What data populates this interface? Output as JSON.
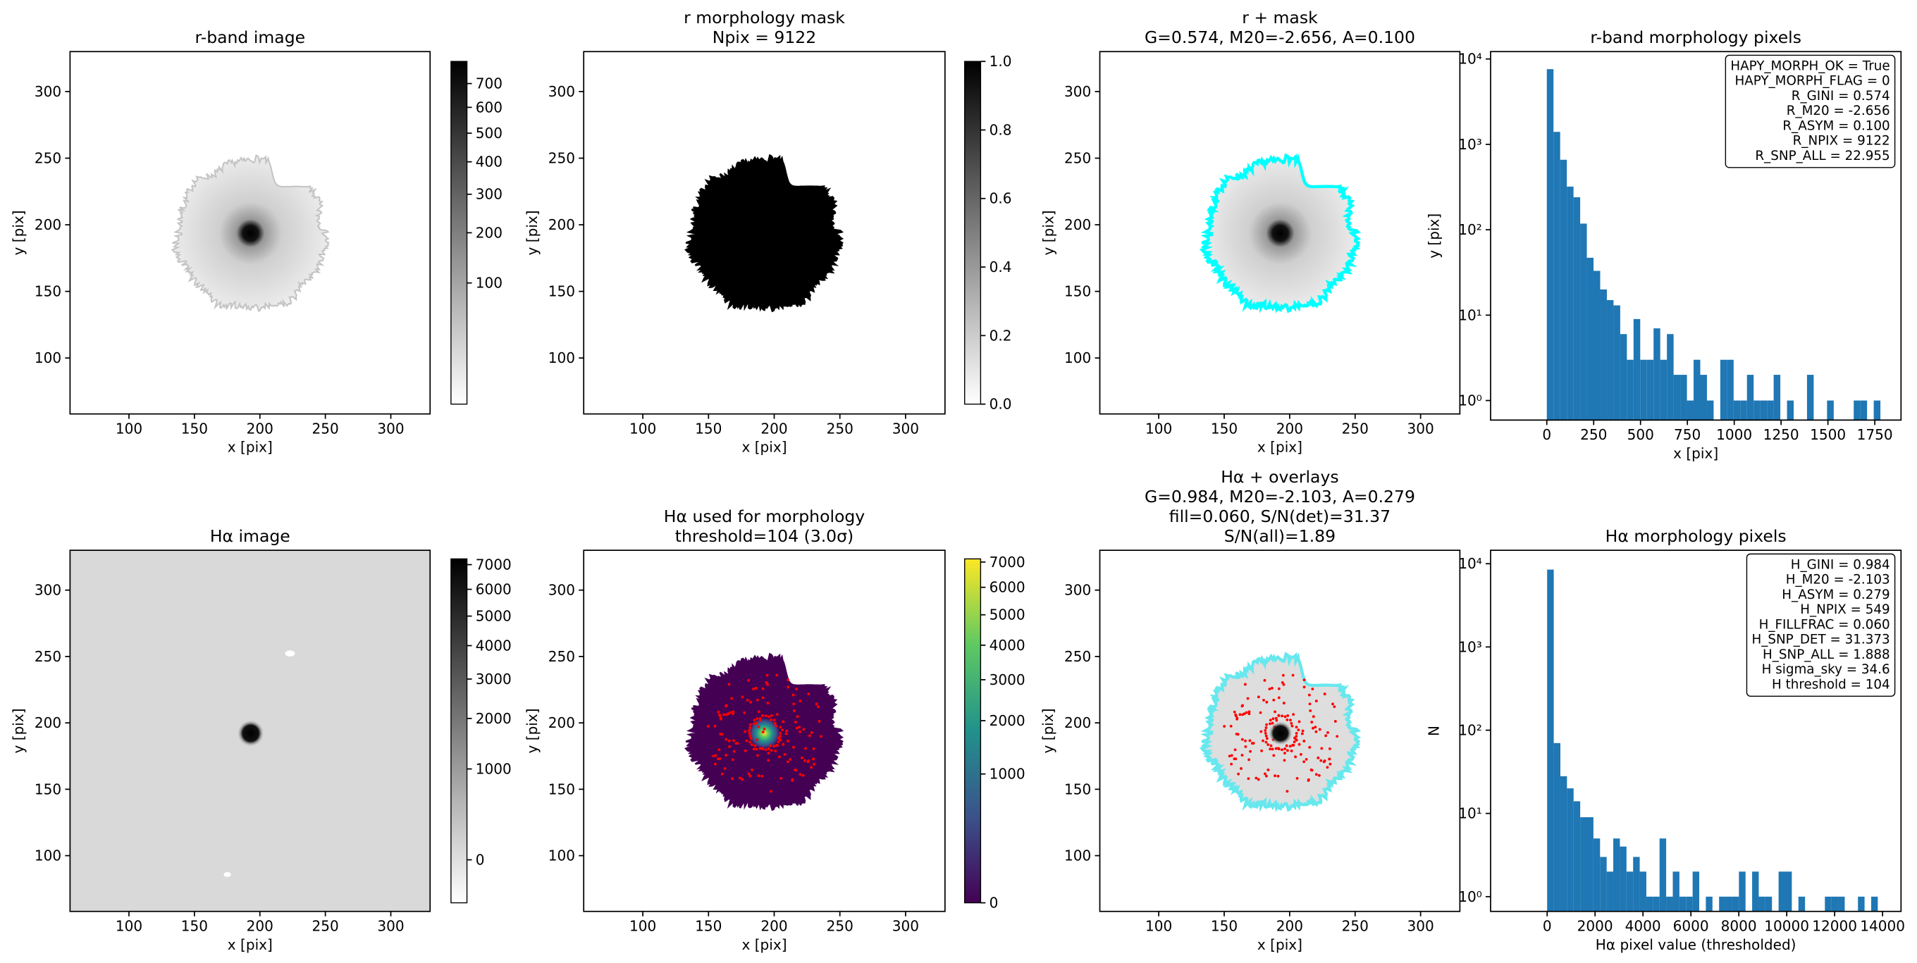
{
  "chart_data": [
    {
      "type": "image",
      "title": "r-band image",
      "xlabel": "x [pix]",
      "ylabel": "y [pix]",
      "xlim": [
        55,
        330
      ],
      "ylim": [
        58,
        330
      ],
      "xticks": [
        100,
        150,
        200,
        250,
        300
      ],
      "yticks": [
        100,
        150,
        200,
        250,
        300
      ],
      "colorbar": {
        "lim": [
          0,
          800
        ],
        "scale": "sqrt",
        "cmap": "gray_r",
        "ticks": [
          100,
          200,
          300,
          400,
          500,
          600,
          700
        ]
      }
    },
    {
      "type": "image",
      "title": [
        "r morphology mask",
        "Npix = 9122"
      ],
      "xlabel": "x [pix]",
      "ylabel": "y [pix]",
      "xlim": [
        55,
        330
      ],
      "ylim": [
        58,
        330
      ],
      "xticks": [
        100,
        150,
        200,
        250,
        300
      ],
      "yticks": [
        100,
        150,
        200,
        250,
        300
      ],
      "colorbar": {
        "lim": [
          0,
          1
        ],
        "scale": "linear",
        "cmap": "gray_r",
        "ticks": [
          {
            "value": 0,
            "label": "0.0"
          },
          0.2,
          0.4,
          0.6,
          0.8,
          {
            "value": 1,
            "label": "1.0"
          }
        ]
      }
    },
    {
      "type": "image",
      "title": [
        "r + mask",
        "G=0.574, M20=-2.656, A=0.100"
      ],
      "xlabel": "x [pix]",
      "ylabel": "y [pix]",
      "xlim": [
        55,
        330
      ],
      "ylim": [
        58,
        330
      ],
      "xticks": [
        100,
        150,
        200,
        250,
        300
      ],
      "yticks": [
        100,
        150,
        200,
        250,
        300
      ]
    },
    {
      "type": "histogram",
      "title": "r-band morphology pixels",
      "xlabel": "x [pix]",
      "ylabel": "y [pix]",
      "color": "#1f77b4",
      "log_y": true,
      "bins": [
        0,
        35.6,
        71.2,
        106.8,
        142.4,
        178,
        213.6,
        249.2,
        284.8,
        320.4,
        356,
        391.6,
        427.2,
        462.8,
        498.4,
        534,
        569.6,
        605.2,
        640.8,
        676.4,
        712,
        747.6,
        783.2,
        818.8,
        854.4,
        890,
        925.6,
        961.2,
        996.8,
        1032.4,
        1068,
        1103.6,
        1139.2,
        1174.8,
        1210.4,
        1246,
        1281.6,
        1317.2,
        1352.8,
        1388.4,
        1424,
        1459.6,
        1495.2,
        1530.8,
        1566.4,
        1602,
        1637.6,
        1673.2,
        1708.8,
        1744.4,
        1780
      ],
      "counts": [
        7600,
        1400,
        660,
        320,
        240,
        118,
        47,
        33,
        20,
        15,
        13,
        6,
        3,
        9,
        3,
        3,
        7,
        3,
        6,
        2,
        2,
        1,
        3,
        2,
        1,
        0,
        3,
        3,
        1,
        1,
        2,
        1,
        1,
        1,
        2,
        0,
        1,
        0,
        0,
        2,
        0,
        0,
        1,
        0,
        0,
        0,
        1,
        1,
        0,
        1
      ],
      "xlim": [
        -300,
        1890
      ],
      "ylim": [
        0.59,
        12200
      ],
      "xticks": [
        0,
        250,
        500,
        750,
        1000,
        1250,
        1500,
        1750
      ],
      "yticks": [
        {
          "value": 1,
          "label": "10⁰"
        },
        {
          "value": 10,
          "label": "10¹"
        },
        {
          "value": 100,
          "label": "10²"
        },
        {
          "value": 1000,
          "label": "10³"
        },
        {
          "value": 10000,
          "label": "10⁴"
        }
      ],
      "annotation_corner": "upper right",
      "annotation": [
        "HAPY_MORPH_OK = True",
        "HAPY_MORPH_FLAG = 0",
        "R_GINI = 0.574",
        "R_M20 = -2.656",
        "R_ASYM = 0.100",
        "R_NPIX = 9122",
        "R_SNP_ALL = 22.955"
      ]
    },
    {
      "type": "image",
      "title": "Hα image",
      "xlabel": "x [pix]",
      "ylabel": "y [pix]",
      "xlim": [
        55,
        330
      ],
      "ylim": [
        58,
        330
      ],
      "xticks": [
        100,
        150,
        200,
        250,
        300
      ],
      "yticks": [
        100,
        150,
        200,
        250,
        300
      ],
      "colorbar": {
        "lim": [
          -115,
          7245
        ],
        "scale": "sqrt",
        "cmap": "gray_r",
        "ticks": [
          0,
          1000,
          2000,
          3000,
          4000,
          5000,
          6000,
          7000
        ]
      }
    },
    {
      "type": "image",
      "title": [
        "Hα used for morphology",
        "threshold=104 (3.0σ)"
      ],
      "xlabel": "x [pix]",
      "ylabel": "y [pix]",
      "xlim": [
        55,
        330
      ],
      "ylim": [
        58,
        330
      ],
      "xticks": [
        100,
        150,
        200,
        250,
        300
      ],
      "yticks": [
        100,
        150,
        200,
        250,
        300
      ],
      "colorbar": {
        "lim": [
          0,
          7130
        ],
        "scale": "sqrt",
        "cmap": "viridis",
        "ticks": [
          0,
          1000,
          2000,
          3000,
          4000,
          5000,
          6000,
          7000
        ]
      }
    },
    {
      "type": "image",
      "title": [
        "Hα + overlays",
        "G=0.984, M20=-2.103, A=0.279",
        "fill=0.060, S/N(det)=31.37",
        "S/N(all)=1.89"
      ],
      "xlabel": "x [pix]",
      "ylabel": "y [pix]",
      "xlim": [
        55,
        330
      ],
      "ylim": [
        58,
        330
      ],
      "xticks": [
        100,
        150,
        200,
        250,
        300
      ],
      "yticks": [
        100,
        150,
        200,
        250,
        300
      ]
    },
    {
      "type": "histogram",
      "title": "Hα morphology pixels",
      "xlabel": "Hα pixel value (thresholded)",
      "ylabel": "N",
      "color": "#1f77b4",
      "log_y": true,
      "bins": [
        0,
        276,
        552,
        828,
        1104,
        1380,
        1656,
        1932,
        2208,
        2484,
        2760,
        3036,
        3312,
        3588,
        3864,
        4140,
        4416,
        4692,
        4968,
        5244,
        5520,
        5796,
        6072,
        6348,
        6624,
        6900,
        7176,
        7452,
        7728,
        8004,
        8280,
        8556,
        8832,
        9108,
        9384,
        9660,
        9936,
        10212,
        10488,
        10764,
        11040,
        11316,
        11592,
        11868,
        12144,
        12420,
        12696,
        12972,
        13248,
        13524,
        13800
      ],
      "counts": [
        8500,
        70,
        28,
        20,
        14,
        9,
        9,
        5,
        3,
        2,
        5,
        4,
        2,
        3,
        2,
        1,
        1,
        5,
        1,
        2,
        1,
        1,
        2,
        0,
        1,
        0,
        1,
        1,
        1,
        2,
        0,
        2,
        1,
        1,
        0,
        2,
        2,
        0,
        1,
        0,
        0,
        0,
        1,
        1,
        1,
        0,
        0,
        1,
        0,
        1
      ],
      "xlim": [
        -2360,
        14770
      ],
      "ylim": [
        0.665,
        14500
      ],
      "xticks": [
        0,
        2000,
        4000,
        6000,
        8000,
        10000,
        12000,
        14000
      ],
      "yticks": [
        {
          "value": 1,
          "label": "10⁰"
        },
        {
          "value": 10,
          "label": "10¹"
        },
        {
          "value": 100,
          "label": "10²"
        },
        {
          "value": 1000,
          "label": "10³"
        },
        {
          "value": 10000,
          "label": "10⁴"
        }
      ],
      "annotation_corner": "upper right",
      "annotation": [
        "H_GINI = 0.984",
        "H_M20 = -2.103",
        "H_ASYM = 0.279",
        "H_NPIX = 549",
        "H_FILLFRAC = 0.060",
        "H_SNP_DET = 31.373",
        "H_SNP_ALL = 1.888",
        "H sigma_sky = 34.6",
        "H threshold = 104"
      ]
    }
  ]
}
